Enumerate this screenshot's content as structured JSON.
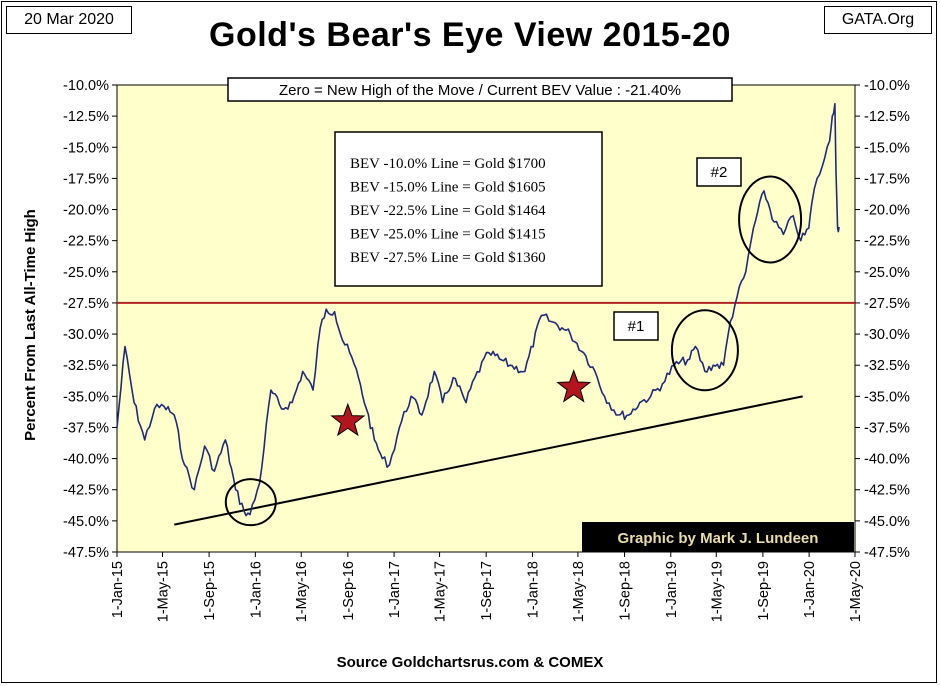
{
  "header": {
    "date": "20 Mar 2020",
    "site": "GATA.Org",
    "title": "Gold's Bear's Eye View 2015-20"
  },
  "footer": {
    "source": "Source Goldchartsrus.com & COMEX"
  },
  "annotations": {
    "zero_note": "Zero = New High of the Move / Current  BEV Value : -21.40%",
    "bev_lines": [
      "BEV -10.0% Line = Gold $1700",
      "BEV -15.0% Line = Gold $1605",
      "BEV -22.5% Line = Gold $1464",
      "BEV -25.0% Line = Gold $1415",
      "BEV -27.5% Line = Gold $1360"
    ],
    "label_1": "#1",
    "label_2": "#2",
    "credit": "Graphic by Mark J. Lundeen"
  },
  "chart_data": {
    "type": "line",
    "title": "Gold's Bear's Eye View 2015-20",
    "ylabel": "Percent  From  Last  All-Time High",
    "xlabel": "",
    "ylim": [
      -47.5,
      -10.0
    ],
    "y_ticks": [
      "-10.0%",
      "-12.5%",
      "-15.0%",
      "-17.5%",
      "-20.0%",
      "-22.5%",
      "-25.0%",
      "-27.5%",
      "-30.0%",
      "-32.5%",
      "-35.0%",
      "-37.5%",
      "-40.0%",
      "-42.5%",
      "-45.0%",
      "-47.5%"
    ],
    "x_ticks": [
      "1-Jan-15",
      "1-May-15",
      "1-Sep-15",
      "1-Jan-16",
      "1-May-16",
      "1-Sep-16",
      "1-Jan-17",
      "1-May-17",
      "1-Sep-17",
      "1-Jan-18",
      "1-May-18",
      "1-Sep-18",
      "1-Jan-19",
      "1-May-19",
      "1-Sep-19",
      "1-Jan-20",
      "1-May-20"
    ],
    "x_range": [
      "2015-01-01",
      "2020-05-01"
    ],
    "series": [
      {
        "color": "#1f2a7a",
        "x": [
          "2015-01-01",
          "2015-01-22",
          "2015-02-15",
          "2015-03-15",
          "2015-04-10",
          "2015-05-05",
          "2015-06-01",
          "2015-06-28",
          "2015-07-24",
          "2015-08-20",
          "2015-09-15",
          "2015-10-14",
          "2015-11-10",
          "2015-12-02",
          "2015-12-18",
          "2016-01-12",
          "2016-02-11",
          "2016-03-10",
          "2016-04-07",
          "2016-05-05",
          "2016-06-01",
          "2016-06-20",
          "2016-07-06",
          "2016-07-28",
          "2016-08-18",
          "2016-09-06",
          "2016-09-29",
          "2016-10-20",
          "2016-11-10",
          "2016-12-01",
          "2016-12-20",
          "2017-01-15",
          "2017-02-15",
          "2017-03-15",
          "2017-04-17",
          "2017-05-09",
          "2017-06-06",
          "2017-07-10",
          "2017-08-02",
          "2017-09-08",
          "2017-10-06",
          "2017-11-03",
          "2017-12-12",
          "2018-01-25",
          "2018-02-20",
          "2018-03-20",
          "2018-04-11",
          "2018-05-16",
          "2018-06-15",
          "2018-07-10",
          "2018-08-16",
          "2018-09-12",
          "2018-10-11",
          "2018-11-09",
          "2018-12-10",
          "2019-01-10",
          "2019-02-20",
          "2019-03-07",
          "2019-04-01",
          "2019-04-23",
          "2019-05-20",
          "2019-06-07",
          "2019-06-25",
          "2019-07-18",
          "2019-08-07",
          "2019-09-04",
          "2019-10-01",
          "2019-10-25",
          "2019-11-20",
          "2019-12-10",
          "2019-12-31",
          "2020-01-08",
          "2020-01-22",
          "2020-02-05",
          "2020-02-24",
          "2020-03-02",
          "2020-03-09",
          "2020-03-12",
          "2020-03-16",
          "2020-03-20"
        ],
        "values": [
          -37.5,
          -31.0,
          -35.5,
          -38.5,
          -36.0,
          -35.8,
          -36.5,
          -40.5,
          -42.5,
          -39.0,
          -41.0,
          -38.5,
          -42.5,
          -44.2,
          -44.5,
          -42.0,
          -34.5,
          -36.0,
          -35.5,
          -33.0,
          -34.5,
          -29.5,
          -28.0,
          -28.2,
          -30.5,
          -31.5,
          -33.5,
          -36.0,
          -38.5,
          -40.0,
          -40.5,
          -37.5,
          -35.0,
          -36.5,
          -33.0,
          -35.5,
          -33.5,
          -35.5,
          -33.5,
          -31.5,
          -32.0,
          -32.5,
          -33.0,
          -28.5,
          -29.0,
          -29.5,
          -30.0,
          -31.5,
          -33.0,
          -35.0,
          -36.5,
          -36.5,
          -35.5,
          -35.0,
          -34.0,
          -32.5,
          -32.0,
          -31.0,
          -33.0,
          -32.5,
          -32.5,
          -29.0,
          -27.0,
          -25.0,
          -21.5,
          -18.5,
          -21.0,
          -22.0,
          -20.5,
          -22.5,
          -21.5,
          -19.5,
          -17.5,
          -16.5,
          -14.5,
          -12.5,
          -11.5,
          -17.0,
          -21.5,
          -21.4
        ]
      }
    ],
    "reference_line": {
      "y": -27.5,
      "color": "#b22222"
    },
    "trendline": {
      "x": [
        "2015-06-01",
        "2019-12-15"
      ],
      "y": [
        -45.3,
        -35.0
      ],
      "color": "#000000"
    },
    "stars": [
      {
        "x": "2016-09-01",
        "y": -37.0
      },
      {
        "x": "2018-04-20",
        "y": -34.3
      }
    ],
    "circles": [
      {
        "x": "2015-12-20",
        "y": -43.5
      },
      {
        "x": "2019-04-01",
        "y": -31.3
      },
      {
        "x": "2019-09-20",
        "y": -20.8
      }
    ],
    "grid": false,
    "background": "#ffffcc",
    "legend": "none"
  }
}
